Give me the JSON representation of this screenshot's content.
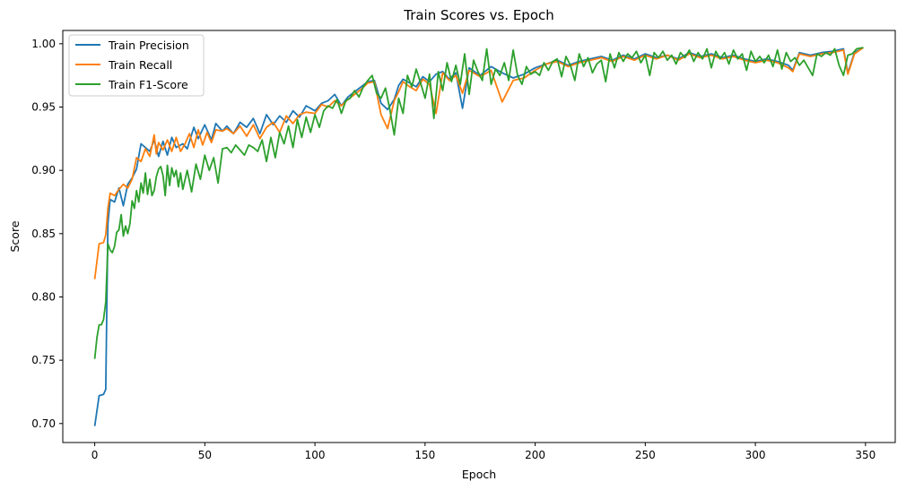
{
  "chart_data": {
    "type": "line",
    "title": "Train Scores vs. Epoch",
    "xlabel": "Epoch",
    "ylabel": "Score",
    "xlim": [
      -14.5,
      363.5
    ],
    "ylim": [
      0.685,
      1.0105
    ],
    "xticks": [
      0,
      50,
      100,
      150,
      200,
      250,
      300,
      350
    ],
    "xtick_labels": [
      "0",
      "50",
      "100",
      "150",
      "200",
      "250",
      "300",
      "350"
    ],
    "yticks": [
      0.7,
      0.75,
      0.8,
      0.85,
      0.9,
      0.95,
      1.0
    ],
    "ytick_labels": [
      "0.70",
      "0.75",
      "0.80",
      "0.85",
      "0.90",
      "0.95",
      "1.00"
    ],
    "grid": false,
    "legend_position": "top-left",
    "colors": {
      "precision": "#1f77b4",
      "recall": "#ff7f0e",
      "f1": "#2ca02c"
    },
    "series": [
      {
        "name": "Train Precision",
        "color": "#1f77b4",
        "x": [
          0,
          2,
          4,
          5,
          6,
          7,
          9,
          11,
          13,
          15,
          17,
          19,
          21,
          23,
          25,
          27,
          29,
          31,
          33,
          35,
          37,
          40,
          42,
          45,
          47,
          50,
          53,
          55,
          58,
          60,
          63,
          66,
          69,
          72,
          75,
          78,
          81,
          84,
          87,
          90,
          93,
          96,
          100,
          103,
          106,
          109,
          112,
          115,
          118,
          121,
          124,
          127,
          130,
          133,
          136,
          138,
          140,
          143,
          146,
          149,
          152,
          155,
          158,
          161,
          164,
          167,
          170,
          175,
          180,
          185,
          190,
          195,
          200,
          205,
          210,
          215,
          220,
          225,
          230,
          235,
          240,
          245,
          250,
          255,
          260,
          265,
          270,
          275,
          280,
          285,
          290,
          295,
          300,
          305,
          310,
          315,
          317,
          320,
          325,
          330,
          335,
          340,
          342,
          345,
          349
        ],
        "y": [
          0.698,
          0.722,
          0.723,
          0.727,
          0.858,
          0.877,
          0.875,
          0.886,
          0.872,
          0.889,
          0.894,
          0.901,
          0.921,
          0.918,
          0.915,
          0.924,
          0.911,
          0.923,
          0.912,
          0.926,
          0.918,
          0.921,
          0.917,
          0.934,
          0.925,
          0.936,
          0.924,
          0.937,
          0.931,
          0.935,
          0.929,
          0.938,
          0.934,
          0.941,
          0.929,
          0.944,
          0.936,
          0.943,
          0.938,
          0.947,
          0.942,
          0.951,
          0.947,
          0.953,
          0.955,
          0.96,
          0.951,
          0.958,
          0.962,
          0.966,
          0.97,
          0.971,
          0.953,
          0.948,
          0.956,
          0.967,
          0.972,
          0.969,
          0.966,
          0.974,
          0.97,
          0.976,
          0.978,
          0.972,
          0.977,
          0.949,
          0.981,
          0.975,
          0.982,
          0.977,
          0.973,
          0.976,
          0.981,
          0.984,
          0.987,
          0.983,
          0.986,
          0.988,
          0.99,
          0.987,
          0.991,
          0.988,
          0.992,
          0.989,
          0.991,
          0.988,
          0.993,
          0.99,
          0.992,
          0.989,
          0.991,
          0.988,
          0.986,
          0.988,
          0.986,
          0.983,
          0.979,
          0.993,
          0.991,
          0.993,
          0.994,
          0.996,
          0.977,
          0.993,
          0.997
        ]
      },
      {
        "name": "Train Recall",
        "color": "#ff7f0e",
        "x": [
          0,
          2,
          4,
          5,
          6,
          7,
          9,
          11,
          13,
          15,
          17,
          19,
          21,
          23,
          25,
          27,
          28,
          29,
          31,
          33,
          35,
          37,
          39,
          41,
          43,
          45,
          47,
          49,
          51,
          53,
          55,
          58,
          60,
          63,
          66,
          69,
          72,
          75,
          78,
          81,
          84,
          87,
          90,
          93,
          96,
          100,
          103,
          106,
          109,
          112,
          115,
          118,
          121,
          124,
          127,
          130,
          133,
          136,
          138,
          140,
          143,
          146,
          149,
          152,
          155,
          158,
          161,
          164,
          167,
          170,
          175,
          180,
          185,
          190,
          195,
          200,
          205,
          210,
          215,
          220,
          225,
          230,
          235,
          240,
          245,
          250,
          255,
          260,
          265,
          270,
          275,
          280,
          285,
          290,
          295,
          300,
          305,
          310,
          315,
          317,
          320,
          325,
          330,
          335,
          340,
          342,
          345,
          349
        ],
        "y": [
          0.814,
          0.842,
          0.843,
          0.849,
          0.87,
          0.882,
          0.88,
          0.885,
          0.889,
          0.886,
          0.893,
          0.91,
          0.907,
          0.917,
          0.911,
          0.928,
          0.913,
          0.922,
          0.916,
          0.924,
          0.915,
          0.926,
          0.915,
          0.921,
          0.929,
          0.918,
          0.932,
          0.92,
          0.93,
          0.922,
          0.932,
          0.931,
          0.933,
          0.929,
          0.935,
          0.927,
          0.936,
          0.925,
          0.934,
          0.938,
          0.93,
          0.943,
          0.937,
          0.944,
          0.946,
          0.945,
          0.952,
          0.95,
          0.955,
          0.951,
          0.956,
          0.96,
          0.964,
          0.969,
          0.97,
          0.944,
          0.933,
          0.955,
          0.962,
          0.97,
          0.966,
          0.963,
          0.972,
          0.968,
          0.945,
          0.977,
          0.971,
          0.975,
          0.961,
          0.979,
          0.974,
          0.979,
          0.954,
          0.971,
          0.973,
          0.979,
          0.984,
          0.986,
          0.982,
          0.985,
          0.987,
          0.989,
          0.986,
          0.99,
          0.987,
          0.991,
          0.988,
          0.991,
          0.987,
          0.992,
          0.989,
          0.991,
          0.988,
          0.99,
          0.987,
          0.985,
          0.987,
          0.985,
          0.981,
          0.978,
          0.992,
          0.99,
          0.992,
          0.993,
          0.995,
          0.976,
          0.992,
          0.997
        ]
      },
      {
        "name": "Train F1-Score",
        "color": "#2ca02c",
        "x": [
          0,
          1,
          2,
          3,
          4,
          5,
          6,
          7,
          8,
          9,
          10,
          11,
          12,
          13,
          14,
          15,
          16,
          17,
          18,
          19,
          20,
          21,
          22,
          23,
          24,
          25,
          26,
          27,
          28,
          29,
          30,
          31,
          32,
          33,
          34,
          35,
          36,
          37,
          38,
          39,
          40,
          42,
          44,
          46,
          48,
          50,
          52,
          54,
          56,
          58,
          60,
          62,
          64,
          66,
          68,
          70,
          72,
          74,
          76,
          78,
          80,
          82,
          84,
          86,
          88,
          90,
          92,
          94,
          96,
          98,
          100,
          102,
          104,
          106,
          108,
          110,
          112,
          114,
          116,
          118,
          120,
          122,
          124,
          126,
          128,
          130,
          132,
          134,
          136,
          138,
          140,
          142,
          144,
          146,
          148,
          150,
          152,
          154,
          156,
          158,
          160,
          162,
          164,
          166,
          168,
          170,
          172,
          174,
          176,
          178,
          180,
          182,
          184,
          186,
          188,
          190,
          192,
          194,
          196,
          198,
          200,
          202,
          204,
          206,
          208,
          210,
          212,
          214,
          216,
          218,
          220,
          222,
          224,
          226,
          228,
          230,
          232,
          234,
          236,
          238,
          240,
          242,
          244,
          246,
          248,
          250,
          252,
          254,
          256,
          258,
          260,
          262,
          264,
          266,
          268,
          270,
          272,
          274,
          276,
          278,
          280,
          282,
          284,
          286,
          288,
          290,
          292,
          294,
          296,
          298,
          300,
          302,
          304,
          306,
          308,
          310,
          312,
          314,
          316,
          318,
          320,
          322,
          324,
          326,
          328,
          330,
          332,
          334,
          336,
          338,
          340,
          342,
          344,
          346,
          349
        ],
        "y": [
          0.751,
          0.768,
          0.778,
          0.778,
          0.782,
          0.796,
          0.842,
          0.837,
          0.835,
          0.84,
          0.851,
          0.853,
          0.865,
          0.848,
          0.856,
          0.85,
          0.858,
          0.876,
          0.87,
          0.884,
          0.875,
          0.89,
          0.882,
          0.898,
          0.881,
          0.893,
          0.88,
          0.884,
          0.895,
          0.901,
          0.903,
          0.896,
          0.88,
          0.904,
          0.888,
          0.902,
          0.895,
          0.9,
          0.887,
          0.898,
          0.885,
          0.9,
          0.883,
          0.905,
          0.893,
          0.912,
          0.9,
          0.91,
          0.89,
          0.917,
          0.918,
          0.914,
          0.92,
          0.916,
          0.912,
          0.92,
          0.918,
          0.915,
          0.924,
          0.907,
          0.926,
          0.91,
          0.93,
          0.921,
          0.935,
          0.918,
          0.94,
          0.926,
          0.942,
          0.93,
          0.944,
          0.934,
          0.947,
          0.951,
          0.949,
          0.956,
          0.945,
          0.955,
          0.957,
          0.963,
          0.958,
          0.966,
          0.971,
          0.975,
          0.961,
          0.957,
          0.965,
          0.948,
          0.928,
          0.957,
          0.945,
          0.975,
          0.966,
          0.98,
          0.969,
          0.957,
          0.976,
          0.941,
          0.978,
          0.963,
          0.985,
          0.97,
          0.983,
          0.968,
          0.992,
          0.96,
          0.987,
          0.978,
          0.971,
          0.996,
          0.968,
          0.98,
          0.975,
          0.985,
          0.971,
          0.995,
          0.975,
          0.968,
          0.982,
          0.976,
          0.978,
          0.975,
          0.985,
          0.979,
          0.986,
          0.988,
          0.974,
          0.99,
          0.983,
          0.971,
          0.992,
          0.982,
          0.989,
          0.977,
          0.984,
          0.987,
          0.97,
          0.992,
          0.981,
          0.993,
          0.986,
          0.992,
          0.989,
          0.994,
          0.985,
          0.991,
          0.975,
          0.993,
          0.989,
          0.994,
          0.987,
          0.991,
          0.984,
          0.993,
          0.989,
          0.995,
          0.986,
          0.993,
          0.988,
          0.996,
          0.981,
          0.994,
          0.988,
          0.993,
          0.984,
          0.995,
          0.988,
          0.992,
          0.979,
          0.994,
          0.986,
          0.99,
          0.985,
          0.991,
          0.982,
          0.995,
          0.98,
          0.993,
          0.986,
          0.989,
          0.983,
          0.987,
          0.981,
          0.975,
          0.992,
          0.99,
          0.993,
          0.991,
          0.996,
          0.983,
          0.975,
          0.991,
          0.992,
          0.996,
          0.997
        ]
      }
    ]
  }
}
